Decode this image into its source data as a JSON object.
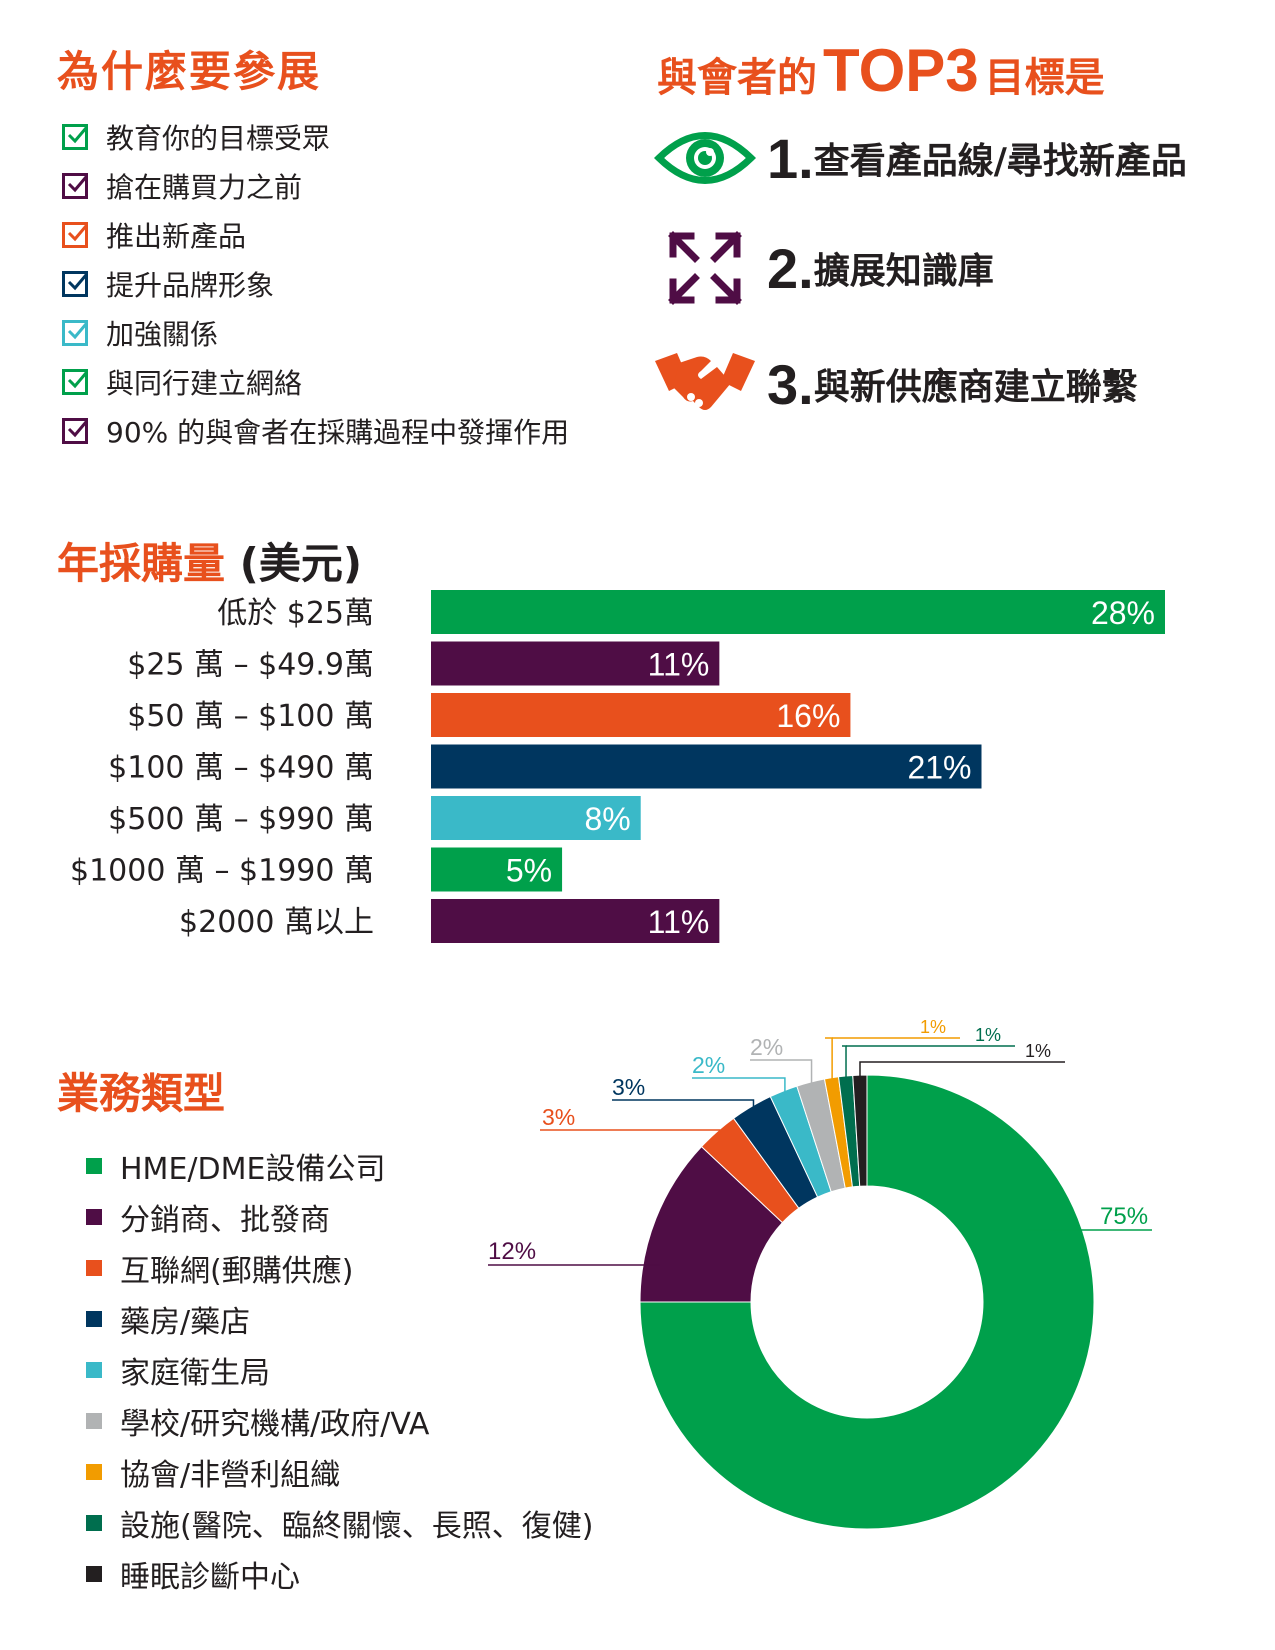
{
  "why": {
    "title": "為什麼要參展",
    "items": [
      {
        "label": "教育你的目標受眾",
        "color": "#00a04b"
      },
      {
        "label": "搶在購買力之前",
        "color": "#4f0d45"
      },
      {
        "label": "推出新產品",
        "color": "#e8501d"
      },
      {
        "label": "提升品牌形象",
        "color": "#00365f"
      },
      {
        "label": "加強關係",
        "color": "#3ab9c8"
      },
      {
        "label": "與同行建立網絡",
        "color": "#00a04b"
      },
      {
        "label": "90% 的與會者在採購過程中發揮作用",
        "color": "#4f0d45"
      }
    ]
  },
  "top3": {
    "title_pre": "與會者的",
    "title_big": "TOP3",
    "title_post": "目標是",
    "goals": [
      {
        "num": "1.",
        "text": "查看產品線/尋找新產品",
        "icon": "eye-icon",
        "color": "#00a04b"
      },
      {
        "num": "2.",
        "text": "擴展知識庫",
        "icon": "expand-arrows-icon",
        "color": "#4f0d45"
      },
      {
        "num": "3.",
        "text": "與新供應商建立聯繫",
        "icon": "handshake-icon",
        "color": "#e8501d"
      }
    ]
  },
  "bars": {
    "title": "年採購量",
    "title_sub": "(美元)",
    "chart_data": {
      "type": "bar",
      "orientation": "horizontal",
      "categories": [
        "低於 $25萬",
        "$25 萬 – $49.9萬",
        "$50 萬 – $100 萬",
        "$100 萬 – $490 萬",
        "$500 萬 – $990 萬",
        "$1000 萬 – $1990 萬",
        "$2000 萬以上"
      ],
      "values": [
        28,
        11,
        16,
        21,
        8,
        5,
        11
      ],
      "labels": [
        "28%",
        "11%",
        "16%",
        "21%",
        "8%",
        "5%",
        "11%"
      ],
      "colors": [
        "#00a04b",
        "#4f0d45",
        "#e8501d",
        "#00365f",
        "#3ab9c8",
        "#00a04b",
        "#4f0d45"
      ],
      "unit": "%"
    }
  },
  "donut": {
    "title": "業務類型",
    "chart_data": {
      "type": "pie",
      "style": "donut",
      "categories": [
        "HME/DME設備公司",
        "分銷商、批發商",
        "互聯網(郵購供應)",
        "藥房/藥店",
        "家庭衛生局",
        "學校/研究機構/政府/VA",
        "協會/非營利組織",
        "設施(醫院、臨終關懷、長照、復健)",
        "睡眠診斷中心"
      ],
      "values": [
        75,
        12,
        3,
        3,
        2,
        2,
        1,
        1,
        1
      ],
      "labels": [
        "75%",
        "12%",
        "3%",
        "3%",
        "2%",
        "2%",
        "1%",
        "1%",
        "1%"
      ],
      "colors": [
        "#00a04b",
        "#4f0d45",
        "#e8501d",
        "#00365f",
        "#3ab9c8",
        "#b1b3b4",
        "#f29c00",
        "#006e4e",
        "#231f20"
      ]
    }
  }
}
